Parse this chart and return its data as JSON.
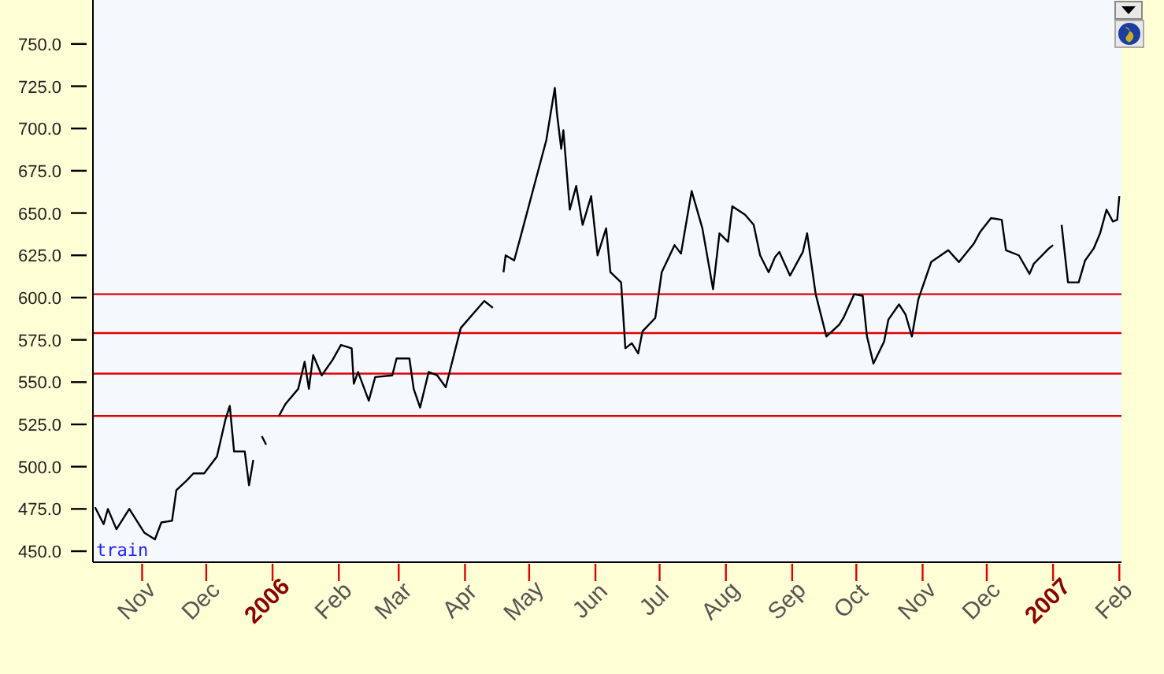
{
  "chart_data": {
    "type": "line",
    "x": [
      "2005-10-10",
      "2005-10-14",
      "2005-10-16",
      "2005-10-20",
      "2005-10-26",
      "2005-11-02",
      "2005-11-07",
      "2005-11-10",
      "2005-11-15",
      "2005-11-17",
      "2005-11-22",
      "2005-11-25",
      "2005-11-30",
      "2005-12-06",
      "2005-12-10",
      "2005-12-12",
      "2005-12-14",
      "2005-12-19",
      "2005-12-21",
      "2005-12-23",
      "2005-12-25",
      "2005-12-27",
      "2005-12-29",
      "2006-01-01",
      "2006-01-04",
      "2006-01-07",
      "2006-01-13",
      "2006-01-16",
      "2006-01-18",
      "2006-01-20",
      "2006-01-24",
      "2006-01-29",
      "2006-02-02",
      "2006-02-07",
      "2006-02-08",
      "2006-02-10",
      "2006-02-15",
      "2006-02-18",
      "2006-02-26",
      "2006-02-28",
      "2006-03-06",
      "2006-03-08",
      "2006-03-11",
      "2006-03-15",
      "2006-03-19",
      "2006-03-23",
      "2006-03-25",
      "2006-03-30",
      "2006-04-10",
      "2006-04-14",
      "2006-04-17",
      "2006-04-19",
      "2006-04-20",
      "2006-04-24",
      "2006-04-27",
      "2006-05-05",
      "2006-05-09",
      "2006-05-13",
      "2006-05-14",
      "2006-05-16",
      "2006-05-17",
      "2006-05-20",
      "2006-05-23",
      "2006-05-26",
      "2006-05-30",
      "2006-06-02",
      "2006-06-06",
      "2006-06-08",
      "2006-06-13",
      "2006-06-15",
      "2006-06-18",
      "2006-06-21",
      "2006-06-23",
      "2006-06-29",
      "2006-07-02",
      "2006-07-08",
      "2006-07-11",
      "2006-07-16",
      "2006-07-21",
      "2006-07-26",
      "2006-07-29",
      "2006-08-02",
      "2006-08-04",
      "2006-08-10",
      "2006-08-14",
      "2006-08-17",
      "2006-08-21",
      "2006-08-24",
      "2006-08-26",
      "2006-08-31",
      "2006-09-06",
      "2006-09-08",
      "2006-09-12",
      "2006-09-17",
      "2006-09-23",
      "2006-09-25",
      "2006-09-30",
      "2006-10-04",
      "2006-10-06",
      "2006-10-09",
      "2006-10-14",
      "2006-10-16",
      "2006-10-21",
      "2006-10-24",
      "2006-10-27",
      "2006-10-30",
      "2006-11-05",
      "2006-11-13",
      "2006-11-18",
      "2006-11-25",
      "2006-11-28",
      "2006-12-03",
      "2006-12-08",
      "2006-12-10",
      "2006-12-16",
      "2006-12-21",
      "2006-12-23",
      "2006-12-30",
      "2007-01-01",
      "2007-01-03",
      "2007-01-05",
      "2007-01-08",
      "2007-01-13",
      "2007-01-16",
      "2007-01-20",
      "2007-01-23",
      "2007-01-26",
      "2007-01-29",
      "2007-01-31",
      "2007-02-01"
    ],
    "series": [
      {
        "color": "#000000",
        "values": [
          476,
          466,
          475,
          463,
          475,
          461,
          457,
          467,
          468,
          486,
          492,
          496,
          496,
          506,
          528,
          536,
          509,
          509,
          489,
          504,
          null,
          518,
          513,
          null,
          530,
          537,
          546,
          562,
          546,
          566,
          554,
          563,
          572,
          570,
          549,
          556,
          539,
          553,
          554,
          564,
          564,
          546,
          535,
          556,
          554,
          547,
          557,
          582,
          598,
          594,
          null,
          615,
          625,
          622,
          636,
          674,
          693,
          724,
          709,
          688,
          699,
          652,
          666,
          643,
          660,
          625,
          641,
          615,
          609,
          570,
          573,
          567,
          580,
          588,
          615,
          631,
          626,
          663,
          641,
          605,
          638,
          633,
          654,
          649,
          643,
          625,
          615,
          624,
          627,
          613,
          627,
          638,
          602,
          577,
          584,
          588,
          602,
          601,
          577,
          561,
          574,
          587,
          596,
          590,
          577,
          599,
          621,
          628,
          621,
          632,
          639,
          647,
          646,
          628,
          625,
          614,
          620,
          629,
          631,
          null,
          643,
          609,
          609,
          622,
          629,
          638,
          652,
          645,
          646,
          660
        ]
      }
    ],
    "xlim": [
      "2005-10-09",
      "2007-02-02"
    ],
    "xticks": [
      {
        "value": "2005-11-01",
        "label": "Nov"
      },
      {
        "value": "2005-12-01",
        "label": "Dec"
      },
      {
        "value": "2006-01-01",
        "label": "2006"
      },
      {
        "value": "2006-02-01",
        "label": "Feb"
      },
      {
        "value": "2006-03-01",
        "label": "Mar"
      },
      {
        "value": "2006-04-01",
        "label": "Apr"
      },
      {
        "value": "2006-05-01",
        "label": "May"
      },
      {
        "value": "2006-06-01",
        "label": "Jun"
      },
      {
        "value": "2006-07-01",
        "label": "Jul"
      },
      {
        "value": "2006-08-01",
        "label": "Aug"
      },
      {
        "value": "2006-09-01",
        "label": "Sep"
      },
      {
        "value": "2006-10-01",
        "label": "Oct"
      },
      {
        "value": "2006-11-01",
        "label": "Nov"
      },
      {
        "value": "2006-12-01",
        "label": "Dec"
      },
      {
        "value": "2007-01-01",
        "label": "2007"
      },
      {
        "value": "2007-02-01",
        "label": "Feb"
      }
    ],
    "ylim": [
      443.5,
      776
    ],
    "yticks": [
      {
        "value": 450,
        "label": "450.0"
      },
      {
        "value": 475,
        "label": "475.0"
      },
      {
        "value": 500,
        "label": "500.0"
      },
      {
        "value": 525,
        "label": "525.0"
      },
      {
        "value": 550,
        "label": "550.0"
      },
      {
        "value": 575,
        "label": "575.0"
      },
      {
        "value": 600,
        "label": "600.0"
      },
      {
        "value": 625,
        "label": "625.0"
      },
      {
        "value": 650,
        "label": "650.0"
      },
      {
        "value": 675,
        "label": "675.0"
      },
      {
        "value": 700,
        "label": "700.0"
      },
      {
        "value": 725,
        "label": "725.0"
      },
      {
        "value": 750,
        "label": "750.0"
      }
    ],
    "ref_lines": [
      {
        "axis": "y",
        "value": 602,
        "color": "#e00000"
      },
      {
        "axis": "y",
        "value": 579,
        "color": "#e00000"
      },
      {
        "axis": "y",
        "value": 555,
        "color": "#e00000"
      },
      {
        "axis": "y",
        "value": 530,
        "color": "#e00000"
      }
    ],
    "annotations": [
      "train"
    ],
    "grid": false,
    "marker": "none",
    "line_style": "solid"
  }
}
